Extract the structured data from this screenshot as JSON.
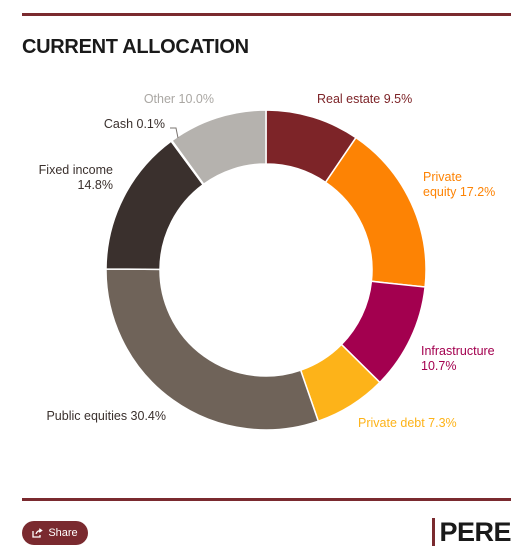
{
  "header": {
    "title": "CURRENT ALLOCATION"
  },
  "footer": {
    "share_label": "Share",
    "brand": "PERE"
  },
  "chart_data": {
    "type": "pie",
    "donut": true,
    "legend": "none",
    "slices": [
      {
        "name": "Real estate",
        "value": 9.5,
        "label": "Real estate 9.5%",
        "color": "#7d2428"
      },
      {
        "name": "Private equity",
        "value": 17.2,
        "label": "Private\nequity 17.2%",
        "color": "#fd8304"
      },
      {
        "name": "Infrastructure",
        "value": 10.7,
        "label": "Infrastructure\n10.7%",
        "color": "#a3004f"
      },
      {
        "name": "Private debt",
        "value": 7.3,
        "label": "Private debt 7.3%",
        "color": "#fdb319"
      },
      {
        "name": "Public equities",
        "value": 30.4,
        "label": "Public equities 30.4%",
        "color": "#6f6359"
      },
      {
        "name": "Fixed income",
        "value": 14.8,
        "label": "Fixed income\n14.8%",
        "color": "#3a302d"
      },
      {
        "name": "Cash",
        "value": 0.1,
        "label": "Cash 0.1%",
        "color": "#d9d9d9"
      },
      {
        "name": "Other",
        "value": 10.0,
        "label": "Other 10.0%",
        "color": "#b5b2ae"
      }
    ]
  }
}
